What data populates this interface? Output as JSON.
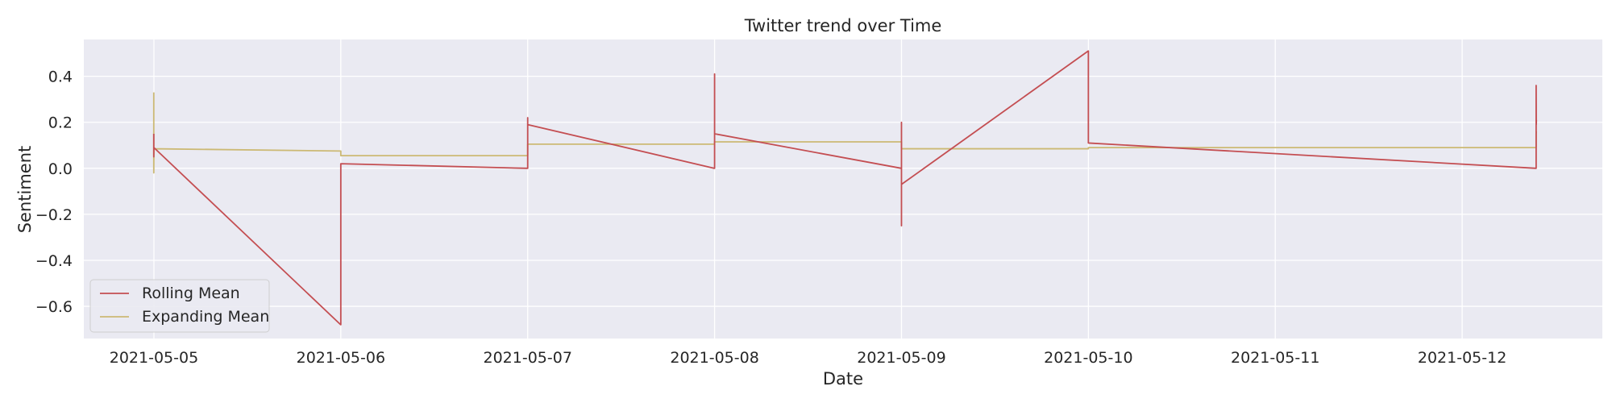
{
  "chart_data": {
    "type": "line",
    "title": "Twitter trend over Time",
    "xlabel": "Date",
    "ylabel": "Sentiment",
    "x_axis": {
      "scale": "date",
      "range": [
        "2021-05-04 15:00",
        "2021-05-12 18:00"
      ],
      "ticks": [
        "2021-05-05",
        "2021-05-06",
        "2021-05-07",
        "2021-05-08",
        "2021-05-09",
        "2021-05-10",
        "2021-05-11",
        "2021-05-12"
      ]
    },
    "y_axis": {
      "range": [
        -0.74,
        0.56
      ],
      "ticks": [
        {
          "value": -0.6,
          "label": "−0.6"
        },
        {
          "value": -0.4,
          "label": "−0.4"
        },
        {
          "value": -0.2,
          "label": "−0.2"
        },
        {
          "value": 0.0,
          "label": "0.0"
        },
        {
          "value": 0.2,
          "label": "0.2"
        },
        {
          "value": 0.4,
          "label": "0.4"
        }
      ]
    },
    "grid": true,
    "legend": "lower-left",
    "series": [
      {
        "name": "Rolling Mean",
        "color": "#c44e52",
        "points": [
          [
            "2021-05-04 23:59",
            0.15
          ],
          [
            "2021-05-04 23:59",
            0.05
          ],
          [
            "2021-05-05 00:00",
            0.09
          ],
          [
            "2021-05-05 23:59",
            -0.68
          ],
          [
            "2021-05-06 00:00",
            -0.68
          ],
          [
            "2021-05-06 00:00",
            0.02
          ],
          [
            "2021-05-06 23:59",
            0.0
          ],
          [
            "2021-05-07 00:00",
            0.0
          ],
          [
            "2021-05-07 00:00",
            0.22
          ],
          [
            "2021-05-07 00:00",
            0.14
          ],
          [
            "2021-05-07 00:00",
            0.19
          ],
          [
            "2021-05-07 23:59",
            0.0
          ],
          [
            "2021-05-08 00:00",
            0.0
          ],
          [
            "2021-05-08 00:00",
            0.41
          ],
          [
            "2021-05-08 00:00",
            0.12
          ],
          [
            "2021-05-08 00:00",
            0.15
          ],
          [
            "2021-05-08 23:59",
            0.0
          ],
          [
            "2021-05-09 00:00",
            0.0
          ],
          [
            "2021-05-09 00:00",
            0.2
          ],
          [
            "2021-05-09 00:00",
            -0.25
          ],
          [
            "2021-05-09 00:00",
            -0.07
          ],
          [
            "2021-05-09 23:59",
            0.51
          ],
          [
            "2021-05-10 00:00",
            0.51
          ],
          [
            "2021-05-10 00:00",
            0.11
          ],
          [
            "2021-05-12 09:30",
            0.0
          ],
          [
            "2021-05-12 09:30",
            0.36
          ],
          [
            "2021-05-12 09:31",
            0.19
          ],
          [
            "2021-05-12 09:32",
            0.21
          ]
        ]
      },
      {
        "name": "Expanding Mean",
        "color": "#ccb974",
        "points": [
          [
            "2021-05-04 23:59",
            0.33
          ],
          [
            "2021-05-04 23:59",
            -0.02
          ],
          [
            "2021-05-05 00:00",
            0.085
          ],
          [
            "2021-05-05 23:59",
            0.075
          ],
          [
            "2021-05-06 00:00",
            0.075
          ],
          [
            "2021-05-06 00:00",
            0.055
          ],
          [
            "2021-05-06 23:59",
            0.055
          ],
          [
            "2021-05-07 00:00",
            0.055
          ],
          [
            "2021-05-07 00:00",
            0.105
          ],
          [
            "2021-05-07 23:59",
            0.105
          ],
          [
            "2021-05-08 00:00",
            0.105
          ],
          [
            "2021-05-08 00:00",
            0.115
          ],
          [
            "2021-05-08 23:59",
            0.115
          ],
          [
            "2021-05-09 00:00",
            0.115
          ],
          [
            "2021-05-09 00:00",
            0.085
          ],
          [
            "2021-05-09 23:59",
            0.085
          ],
          [
            "2021-05-10 00:00",
            0.085
          ],
          [
            "2021-05-10 00:00",
            0.09
          ],
          [
            "2021-05-12 09:30",
            0.09
          ],
          [
            "2021-05-12 09:30",
            0.15
          ],
          [
            "2021-05-12 09:32",
            0.16
          ]
        ]
      }
    ]
  }
}
